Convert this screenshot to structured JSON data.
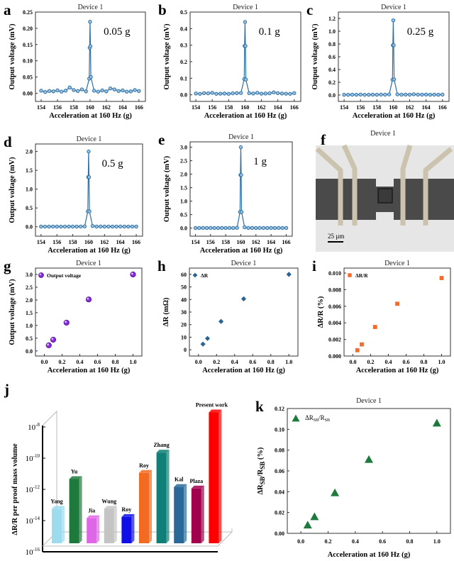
{
  "chart_data": [
    {
      "id": "a",
      "panel_label": "a",
      "type": "line",
      "title": "Device 1",
      "annotation": "0.05 g",
      "xlabel": "Acceleration at 160 Hz (g)",
      "ylabel": "Output voltage (mV)",
      "xlim": [
        153.3,
        166.8
      ],
      "ylim": [
        -0.025,
        0.25
      ],
      "xticks": [
        154,
        156,
        158,
        160,
        162,
        164,
        166
      ],
      "yticks": [
        "0.00",
        "0.05",
        "0.10",
        "0.15",
        "0.20",
        "0.25"
      ],
      "color": "#2e6fa3",
      "x": [
        154,
        154.5,
        155,
        155.5,
        156,
        156.5,
        157,
        157.5,
        158,
        158.5,
        159,
        159.5,
        159.9,
        159.95,
        160,
        160.05,
        160.1,
        160.5,
        161,
        161.5,
        162,
        162.5,
        163,
        163.5,
        164,
        164.5,
        165,
        165.5,
        166
      ],
      "y": [
        0.008,
        0.004,
        0.007,
        0.006,
        0.009,
        0.005,
        0.008,
        0.018,
        0.01,
        0.007,
        0.012,
        0.006,
        0.045,
        0.14,
        0.22,
        0.145,
        0.05,
        0.008,
        0.005,
        0.009,
        0.006,
        0.015,
        0.012,
        0.007,
        0.009,
        0.005,
        0.006,
        0.01,
        0.007
      ]
    },
    {
      "id": "b",
      "panel_label": "b",
      "type": "line",
      "title": "Device 1",
      "annotation": "0.1 g",
      "xlabel": "Acceleration at 160 Hz (g)",
      "ylabel": "Output voltage (mV)",
      "xlim": [
        153.3,
        166.8
      ],
      "ylim": [
        -0.04,
        0.5
      ],
      "xticks": [
        154,
        156,
        158,
        160,
        162,
        164,
        166
      ],
      "yticks": [
        "0.0",
        "0.1",
        "0.2",
        "0.3",
        "0.4",
        "0.5"
      ],
      "color": "#2e6fa3",
      "x": [
        154,
        154.5,
        155,
        155.5,
        156,
        156.5,
        157,
        157.5,
        158,
        158.5,
        159,
        159.5,
        159.9,
        159.95,
        160,
        160.05,
        160.1,
        160.5,
        161,
        161.5,
        162,
        162.5,
        163,
        163.5,
        164,
        164.5,
        165,
        165.5,
        166
      ],
      "y": [
        0.008,
        0.006,
        0.01,
        0.009,
        0.012,
        0.006,
        0.007,
        0.008,
        0.006,
        0.009,
        0.01,
        0.011,
        0.095,
        0.295,
        0.44,
        0.295,
        0.092,
        0.01,
        0.008,
        0.012,
        0.007,
        0.008,
        0.009,
        0.015,
        0.01,
        0.008,
        0.007,
        0.006,
        0.01
      ]
    },
    {
      "id": "c",
      "panel_label": "c",
      "type": "line",
      "title": "Device 1",
      "annotation": "0.25 g",
      "xlabel": "Acceleration at 160 Hz (g)",
      "ylabel": "Output voltage (mV)",
      "xlim": [
        153.3,
        166.8
      ],
      "ylim": [
        -0.1,
        1.3
      ],
      "xticks": [
        154,
        156,
        158,
        160,
        162,
        164,
        166
      ],
      "yticks": [
        "0.0",
        "0.2",
        "0.4",
        "0.6",
        "0.8",
        "1.0",
        "1.2"
      ],
      "color": "#2e6fa3",
      "x": [
        154,
        154.5,
        155,
        155.5,
        156,
        156.5,
        157,
        157.5,
        158,
        158.5,
        159,
        159.5,
        159.9,
        159.95,
        160,
        160.05,
        160.1,
        160.5,
        161,
        161.5,
        162,
        162.5,
        163,
        163.5,
        164,
        164.5,
        165,
        165.5,
        166
      ],
      "y": [
        0.005,
        0.004,
        0.006,
        0.005,
        0.007,
        0.004,
        0.005,
        0.006,
        0.005,
        0.007,
        0.006,
        0.01,
        0.24,
        0.78,
        1.17,
        0.78,
        0.245,
        0.01,
        0.006,
        0.008,
        0.006,
        0.012,
        0.007,
        0.006,
        0.008,
        0.005,
        0.006,
        0.005,
        0.007
      ]
    },
    {
      "id": "d",
      "panel_label": "d",
      "type": "line",
      "title": "Device 1",
      "annotation": "0.5 g",
      "xlabel": "Acceleration at 160 Hz (g)",
      "ylabel": "Output voltage (mV)",
      "xlim": [
        153.3,
        166.8
      ],
      "ylim": [
        -0.25,
        2.2
      ],
      "xticks": [
        154,
        156,
        158,
        160,
        162,
        164,
        166
      ],
      "yticks": [
        "0.0",
        "0.5",
        "1.0",
        "1.5",
        "2.0"
      ],
      "color": "#2e6fa3",
      "x": [
        154,
        154.5,
        155,
        155.5,
        156,
        156.5,
        157,
        157.5,
        158,
        158.5,
        159,
        159.5,
        159.9,
        159.95,
        160,
        160.05,
        160.1,
        160.5,
        161,
        161.5,
        162,
        162.5,
        163,
        163.5,
        164,
        164.5,
        165,
        165.5,
        166
      ],
      "y": [
        0.005,
        0.004,
        0.006,
        0.005,
        0.006,
        0.004,
        0.005,
        0.006,
        0.005,
        0.006,
        0.005,
        0.01,
        0.41,
        1.32,
        2.0,
        1.32,
        0.41,
        0.02,
        0.006,
        0.007,
        0.005,
        0.006,
        0.006,
        0.005,
        0.007,
        0.005,
        0.006,
        0.005,
        0.006
      ]
    },
    {
      "id": "e",
      "panel_label": "e",
      "type": "line",
      "title": "Device 1",
      "annotation": "1 g",
      "xlabel": "Acceleration at 160 Hz (g)",
      "ylabel": "Output voltage (mV)",
      "xlim": [
        153.3,
        166.8
      ],
      "ylim": [
        -0.3,
        3.2
      ],
      "xticks": [
        154,
        156,
        158,
        160,
        162,
        164,
        166
      ],
      "yticks": [
        "0.0",
        "0.5",
        "1.0",
        "1.5",
        "2.0",
        "2.5",
        "3.0"
      ],
      "color": "#2e6fa3",
      "x": [
        154,
        154.5,
        155,
        155.5,
        156,
        156.5,
        157,
        157.5,
        158,
        158.5,
        159,
        159.5,
        159.9,
        159.95,
        160,
        160.05,
        160.1,
        160.5,
        161,
        161.5,
        162,
        162.5,
        163,
        163.5,
        164,
        164.5,
        165,
        165.5,
        166
      ],
      "y": [
        0.005,
        0.004,
        0.006,
        0.005,
        0.006,
        0.004,
        0.005,
        0.006,
        0.005,
        0.006,
        0.005,
        0.01,
        0.6,
        1.97,
        3.0,
        1.97,
        0.6,
        0.03,
        0.006,
        0.007,
        0.005,
        0.006,
        0.006,
        0.005,
        0.007,
        0.005,
        0.006,
        0.005,
        0.006
      ]
    },
    {
      "id": "g",
      "panel_label": "g",
      "type": "scatter",
      "title": "Device 1",
      "legend": "Output voltage",
      "marker": "sphere",
      "color": "#8a2be2",
      "xlabel": "Acceleration at 160 Hz (g)",
      "ylabel": "Output voltage (mV)",
      "xlim": [
        -0.1,
        1.1
      ],
      "ylim": [
        -0.2,
        3.25
      ],
      "xticks": [
        "0.0",
        "0.2",
        "0.4",
        "0.6",
        "0.8",
        "1.0"
      ],
      "yticks": [
        "0.0",
        "0.5",
        "1.0",
        "1.5",
        "2.0",
        "2.5",
        "3.0"
      ],
      "x": [
        0.05,
        0.1,
        0.25,
        0.5,
        1.0
      ],
      "y": [
        0.22,
        0.44,
        1.11,
        2.02,
        3.0
      ]
    },
    {
      "id": "h",
      "panel_label": "h",
      "type": "scatter",
      "title": "Device 1",
      "legend": "ΔR",
      "marker": "diamond",
      "color": "#2a6496",
      "xlabel": "Acceleration at 160 Hz (g)",
      "ylabel": "ΔR (mΩ)",
      "xlim": [
        -0.1,
        1.1
      ],
      "ylim": [
        -5,
        65
      ],
      "xticks": [
        "0.0",
        "0.2",
        "0.4",
        "0.6",
        "0.8",
        "1.0"
      ],
      "yticks": [
        "0",
        "10",
        "20",
        "30",
        "40",
        "50",
        "60"
      ],
      "x": [
        0.05,
        0.1,
        0.25,
        0.5,
        1.0
      ],
      "y": [
        4.5,
        9,
        22.5,
        40.5,
        60
      ]
    },
    {
      "id": "i",
      "panel_label": "i",
      "type": "scatter",
      "title": "Device 1",
      "legend": "ΔR/R",
      "marker": "square",
      "color": "#f26b2a",
      "xlabel": "Acceleration at 160 Hz (g)",
      "ylabel": "ΔR/R (%)",
      "xlim": [
        -0.1,
        1.1
      ],
      "ylim": [
        0,
        0.0106
      ],
      "xticks": [
        "0.0",
        "0.2",
        "0.4",
        "0.6",
        "0.8",
        "1.0"
      ],
      "yticks": [
        "0.000",
        "0.002",
        "0.004",
        "0.006",
        "0.008",
        "0.010"
      ],
      "x": [
        0.05,
        0.1,
        0.25,
        0.5,
        1.0
      ],
      "y": [
        0.0007,
        0.0014,
        0.0035,
        0.0063,
        0.0094
      ]
    },
    {
      "id": "j",
      "panel_label": "j",
      "type": "bar",
      "log_scale": true,
      "ylabel": "ΔR/R per proof mass volume",
      "yticks": [
        {
          "base": "10",
          "exp": "-8"
        },
        {
          "base": "10",
          "exp": "-10"
        },
        {
          "base": "10",
          "exp": "-12"
        },
        {
          "base": "10",
          "exp": "-14"
        },
        {
          "base": "10",
          "exp": "-16"
        }
      ],
      "categories": [
        "Yang",
        "Yu",
        "Jia",
        "Wung",
        "Roy",
        "Roy",
        "Zhang",
        "Kal",
        "Plaza",
        "Present work"
      ],
      "values": [
        2e-14,
        1.6e-12,
        5e-15,
        2e-14,
        6e-15,
        4e-12,
        8e-11,
        5e-13,
        4e-13,
        3e-08
      ],
      "colors": [
        "#9ddcee",
        "#1e7a3c",
        "#e066e8",
        "#c4c4c4",
        "#1010e6",
        "#f26b20",
        "#0e8078",
        "#2a6898",
        "#a0004c",
        "#ff0000"
      ]
    },
    {
      "id": "k",
      "panel_label": "k",
      "type": "scatter",
      "title": "Device 1",
      "marker": "triangle",
      "color": "#1e7a3c",
      "legend": {
        "a": "ΔR",
        "b": "SB",
        "c": "/R",
        "d": "SB"
      },
      "xlabel": "Acceleration at 160 Hz (g)",
      "ylabel": {
        "a": "ΔR",
        "b": "SB",
        "c": "/R",
        "d": "SB",
        "e": " (%)"
      },
      "xlim": [
        -0.1,
        1.1
      ],
      "ylim": [
        0,
        0.12
      ],
      "xticks": [
        "0.0",
        "0.2",
        "0.4",
        "0.6",
        "0.8",
        "1.0"
      ],
      "yticks": [
        "0.00",
        "0.02",
        "0.04",
        "0.06",
        "0.08",
        "0.10",
        "0.12"
      ],
      "x": [
        0.05,
        0.1,
        0.25,
        0.5,
        1.0
      ],
      "y": [
        0.008,
        0.016,
        0.039,
        0.071,
        0.106
      ]
    }
  ],
  "image_f": {
    "panel_label": "f",
    "title": "Device 1",
    "scale_bar": "25 µm"
  }
}
